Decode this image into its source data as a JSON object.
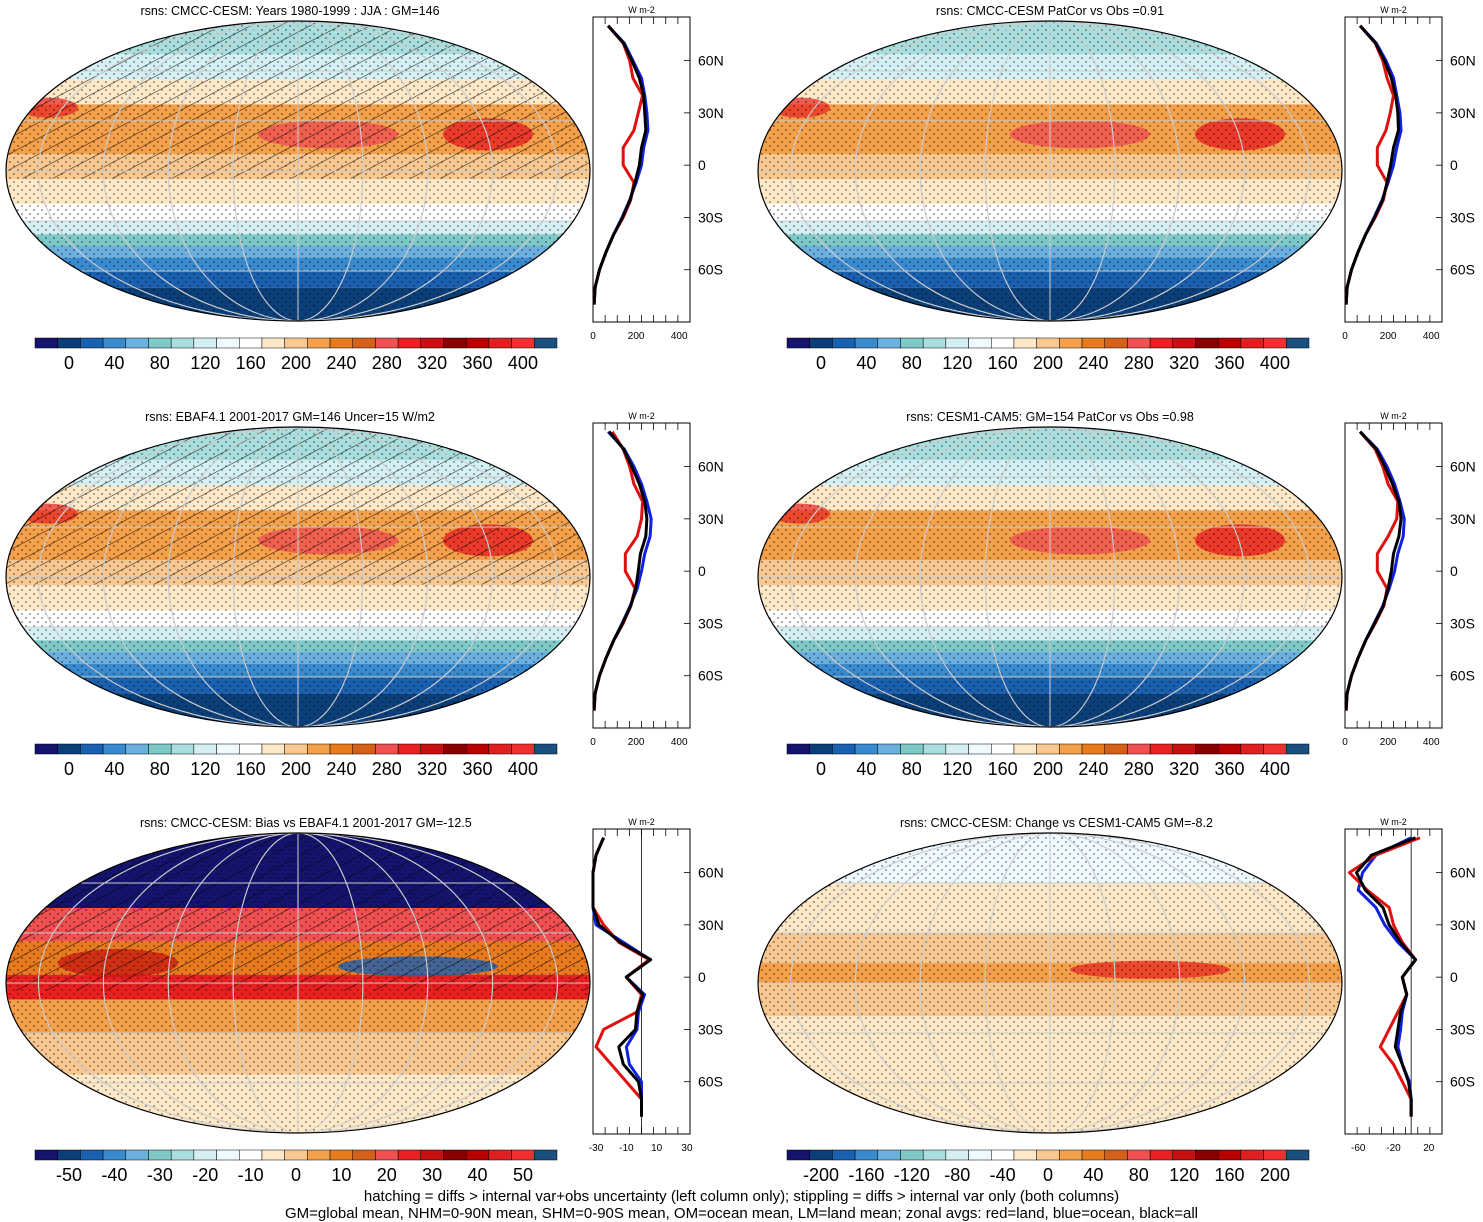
{
  "colors": {
    "abs_scale": [
      "#14146e",
      "#0b3f7a",
      "#1a60b0",
      "#3a8ad0",
      "#6cb0e0",
      "#7ec8c8",
      "#a8dede",
      "#d4f0f4",
      "#eefaff",
      "#ffffff",
      "#fde8c8",
      "#f8c890",
      "#f5a04a",
      "#e87a1e",
      "#d4601a",
      "#f05050",
      "#e82020",
      "#c81010",
      "#8a0000",
      "#b80000",
      "#e02020",
      "#f03030",
      "#1a5080"
    ],
    "bias_scale": [
      "#14146e",
      "#0b3f7a",
      "#1a60b0",
      "#3a8ad0",
      "#6cb0e0",
      "#7ec8c8",
      "#a8dede",
      "#d4f0f4",
      "#eefaff",
      "#ffffff",
      "#fde8c8",
      "#f8c890",
      "#f5a04a",
      "#e87a1e",
      "#d4601a",
      "#f05050",
      "#e82020",
      "#c81010",
      "#8a0000",
      "#b80000",
      "#e02020",
      "#f03030",
      "#1a5080"
    ],
    "land": "#e01010",
    "ocean": "#1020e0",
    "all": "#000000"
  },
  "panels": [
    {
      "title": "rsns: CMCC-CESM: Years 1980-1999 : JJA : GM=146",
      "map_kind": "abs",
      "hatched": true,
      "colorbar_labels": [
        "0",
        "40",
        "80",
        "120",
        "160",
        "200",
        "240",
        "280",
        "320",
        "360",
        "400"
      ],
      "zonal": {
        "xlim": [
          0,
          450
        ],
        "xticks": [
          "0",
          "200",
          "400"
        ],
        "xtick_values": [
          0,
          200,
          400
        ],
        "units": "W m-2",
        "lat_labels": [
          "60N",
          "30N",
          "0",
          "30S",
          "60S"
        ],
        "lat": [
          80,
          70,
          60,
          50,
          40,
          30,
          20,
          10,
          0,
          -10,
          -20,
          -30,
          -40,
          -50,
          -60,
          -70,
          -80
        ],
        "land": [
          70,
          140,
          170,
          185,
          230,
          210,
          190,
          140,
          140,
          190,
          175,
          140,
          95,
          60,
          30,
          10,
          5
        ],
        "ocean": [
          70,
          145,
          185,
          225,
          240,
          250,
          255,
          235,
          225,
          200,
          170,
          135,
          95,
          60,
          30,
          10,
          5
        ],
        "all": [
          70,
          142,
          180,
          215,
          235,
          240,
          245,
          225,
          215,
          195,
          172,
          137,
          95,
          60,
          30,
          10,
          5
        ]
      }
    },
    {
      "title": "rsns: CMCC-CESM PatCor vs Obs =0.91",
      "map_kind": "abs",
      "hatched": false,
      "colorbar_labels": [
        "0",
        "40",
        "80",
        "120",
        "160",
        "200",
        "240",
        "280",
        "320",
        "360",
        "400"
      ],
      "zonal": {
        "xlim": [
          0,
          450
        ],
        "xticks": [
          "0",
          "200",
          "400"
        ],
        "xtick_values": [
          0,
          200,
          400
        ],
        "units": "W m-2",
        "lat_labels": [
          "60N",
          "30N",
          "0",
          "30S",
          "60S"
        ],
        "lat": [
          80,
          70,
          60,
          50,
          40,
          30,
          20,
          10,
          0,
          -10,
          -20,
          -30,
          -40,
          -50,
          -60,
          -70,
          -80
        ],
        "land": [
          70,
          140,
          175,
          195,
          225,
          210,
          190,
          150,
          150,
          195,
          178,
          140,
          95,
          60,
          30,
          10,
          5
        ],
        "ocean": [
          70,
          145,
          190,
          225,
          240,
          255,
          260,
          240,
          225,
          200,
          172,
          135,
          95,
          60,
          30,
          10,
          5
        ],
        "all": [
          70,
          142,
          183,
          215,
          235,
          245,
          248,
          225,
          212,
          195,
          175,
          137,
          95,
          60,
          30,
          10,
          5
        ]
      }
    },
    {
      "title": "rsns: EBAF4.1 2001-2017 GM=146 Uncer=15 W/m2",
      "map_kind": "abs",
      "hatched": true,
      "colorbar_labels": [
        "0",
        "40",
        "80",
        "120",
        "160",
        "200",
        "240",
        "280",
        "320",
        "360",
        "400"
      ],
      "zonal": {
        "xlim": [
          0,
          450
        ],
        "xticks": [
          "0",
          "200",
          "400"
        ],
        "xtick_values": [
          0,
          200,
          400
        ],
        "units": "W m-2",
        "lat_labels": [
          "60N",
          "30N",
          "0",
          "30S",
          "60S"
        ],
        "lat": [
          80,
          70,
          60,
          50,
          40,
          30,
          20,
          10,
          0,
          -10,
          -20,
          -30,
          -40,
          -50,
          -60,
          -70,
          -80
        ],
        "land": [
          90,
          140,
          170,
          190,
          230,
          225,
          205,
          150,
          150,
          195,
          175,
          140,
          95,
          60,
          30,
          10,
          5
        ],
        "ocean": [
          70,
          145,
          190,
          225,
          250,
          270,
          265,
          240,
          225,
          205,
          172,
          135,
          95,
          60,
          30,
          10,
          5
        ],
        "all": [
          75,
          142,
          180,
          215,
          240,
          250,
          245,
          220,
          210,
          198,
          175,
          137,
          95,
          60,
          30,
          10,
          5
        ]
      }
    },
    {
      "title": "rsns: CESM1-CAM5: GM=154 PatCor vs Obs =0.98",
      "map_kind": "abs",
      "hatched": false,
      "colorbar_labels": [
        "0",
        "40",
        "80",
        "120",
        "160",
        "200",
        "240",
        "280",
        "320",
        "360",
        "400"
      ],
      "zonal": {
        "xlim": [
          0,
          450
        ],
        "xticks": [
          "0",
          "200",
          "400"
        ],
        "xtick_values": [
          0,
          200,
          400
        ],
        "units": "W m-2",
        "lat_labels": [
          "60N",
          "30N",
          "0",
          "30S",
          "60S"
        ],
        "lat": [
          80,
          70,
          60,
          50,
          40,
          30,
          20,
          10,
          0,
          -10,
          -20,
          -30,
          -40,
          -50,
          -60,
          -70,
          -80
        ],
        "land": [
          70,
          140,
          175,
          200,
          245,
          240,
          200,
          150,
          150,
          195,
          180,
          140,
          95,
          60,
          30,
          10,
          5
        ],
        "ocean": [
          70,
          150,
          195,
          230,
          255,
          275,
          270,
          245,
          230,
          205,
          175,
          135,
          95,
          60,
          30,
          10,
          5
        ],
        "all": [
          70,
          145,
          185,
          220,
          250,
          260,
          250,
          225,
          215,
          200,
          178,
          137,
          95,
          60,
          30,
          10,
          5
        ]
      }
    },
    {
      "title": "rsns: CMCC-CESM: Bias vs EBAF4.1 2001-2017 GM=-12.5",
      "map_kind": "bias",
      "hatched": true,
      "colorbar_labels": [
        "-50",
        "-40",
        "-30",
        "-20",
        "-10",
        "0",
        "10",
        "20",
        "30",
        "40",
        "50"
      ],
      "zonal": {
        "xlim": [
          -32,
          32
        ],
        "xticks": [
          "-30",
          "-10",
          "10",
          "30"
        ],
        "xtick_values": [
          -30,
          -10,
          10,
          30
        ],
        "units": "W m-2",
        "lat_labels": [
          "60N",
          "30N",
          "0",
          "30S",
          "60S"
        ],
        "lat": [
          80,
          70,
          60,
          50,
          40,
          30,
          20,
          10,
          0,
          -10,
          -20,
          -30,
          -40,
          -50,
          -60,
          -70,
          -80
        ],
        "land": [
          -25,
          -30,
          -40,
          -60,
          -40,
          -25,
          -15,
          5,
          -10,
          0,
          -3,
          -25,
          -30,
          -20,
          -10,
          0,
          0
        ],
        "ocean": [
          -25,
          -30,
          -40,
          -45,
          -40,
          -30,
          -12,
          6,
          -10,
          2,
          -2,
          -3,
          -10,
          -8,
          0,
          0,
          0
        ],
        "all": [
          -25,
          -30,
          -40,
          -50,
          -40,
          -28,
          -14,
          6,
          -10,
          1,
          -3,
          -4,
          -15,
          -12,
          -2,
          0,
          0
        ]
      }
    },
    {
      "title": "rsns: CMCC-CESM: Change vs CESM1-CAM5 GM=-8.2",
      "map_kind": "bias",
      "hatched": false,
      "colorbar_labels": [
        "-200",
        "-160",
        "-120",
        "-80",
        "-40",
        "0",
        "40",
        "80",
        "120",
        "160",
        "200"
      ],
      "zonal": {
        "xlim": [
          -75,
          35
        ],
        "xticks": [
          "-60",
          "-20",
          "20"
        ],
        "xtick_values": [
          -60,
          -20,
          20
        ],
        "units": "W m-2",
        "lat_labels": [
          "60N",
          "30N",
          "0",
          "30S",
          "60S"
        ],
        "lat": [
          80,
          70,
          60,
          50,
          40,
          30,
          20,
          10,
          0,
          -10,
          -20,
          -30,
          -40,
          -50,
          -60,
          -70,
          -80
        ],
        "land": [
          10,
          -40,
          -70,
          -50,
          -25,
          -20,
          -10,
          5,
          -10,
          -5,
          -15,
          -25,
          -35,
          -20,
          -10,
          0,
          0
        ],
        "ocean": [
          0,
          -40,
          -55,
          -60,
          -40,
          -30,
          -15,
          5,
          -10,
          -5,
          -10,
          -12,
          -15,
          -10,
          -2,
          0,
          0
        ],
        "all": [
          5,
          -45,
          -62,
          -52,
          -32,
          -25,
          -12,
          5,
          -10,
          -5,
          -12,
          -15,
          -18,
          -10,
          -3,
          0,
          0
        ]
      }
    }
  ],
  "footer": {
    "line1": "hatching = diffs > internal var+obs uncertainty (left column only); stippling = diffs > internal var only (both columns)",
    "line2": "GM=global mean, NHM=0-90N mean, SHM=0-90S mean, OM=ocean mean, LM=land mean; zonal avgs: red=land, blue=ocean, black=all"
  }
}
